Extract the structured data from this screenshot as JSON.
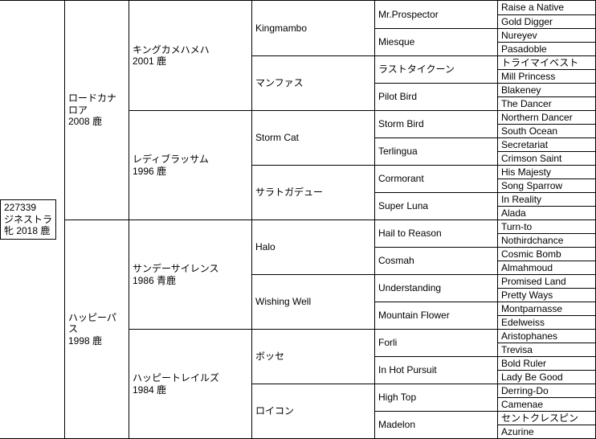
{
  "subject": {
    "id": "227339",
    "name": "ジネストラ",
    "desc": "牝 2018 鹿"
  },
  "p": [
    {
      "name": "ロードカナロア",
      "desc": "2008 鹿"
    },
    {
      "name": "ハッピーパス",
      "desc": "1998 鹿"
    }
  ],
  "gp": [
    {
      "name": "キングカメハメハ",
      "desc": "2001 鹿"
    },
    {
      "name": "レディブラッサム",
      "desc": "1996 鹿"
    },
    {
      "name": "サンデーサイレンス",
      "desc": "1986 青鹿"
    },
    {
      "name": "ハッピートレイルズ",
      "desc": "1984 鹿"
    }
  ],
  "ggp": [
    "Kingmambo",
    "マンファス",
    "Storm Cat",
    "サラトガデュー",
    "Halo",
    "Wishing Well",
    "ボッセ",
    "ロイコン"
  ],
  "g3": [
    "Mr.Prospector",
    "Miesque",
    "ラストタイクーン",
    "Pilot Bird",
    "Storm Bird",
    "Terlingua",
    "Cormorant",
    "Super Luna",
    "Hail to Reason",
    "Cosmah",
    "Understanding",
    "Mountain Flower",
    "Forli",
    "In Hot Pursuit",
    "High Top",
    "Madelon"
  ],
  "g4": [
    "Raise a Native",
    "Gold Digger",
    "Nureyev",
    "Pasadoble",
    "トライマイベスト",
    "Mill Princess",
    "Blakeney",
    "The Dancer",
    "Northern Dancer",
    "South Ocean",
    "Secretariat",
    "Crimson Saint",
    "His Majesty",
    "Song Sparrow",
    "In Reality",
    "Alada",
    "Turn-to",
    "Nothirdchance",
    "Cosmic Bomb",
    "Almahmoud",
    "Promised Land",
    "Pretty Ways",
    "Montparnasse",
    "Edelweiss",
    "Aristophanes",
    "Trevisa",
    "Bold Ruler",
    "Lady Be Good",
    "Derring-Do",
    "Camenae",
    "セントクレスピン",
    "Azurine"
  ],
  "h": {
    "g4": 17,
    "g3": 34,
    "ggp": 68,
    "gp": 136,
    "p": 272,
    "total": 544
  }
}
